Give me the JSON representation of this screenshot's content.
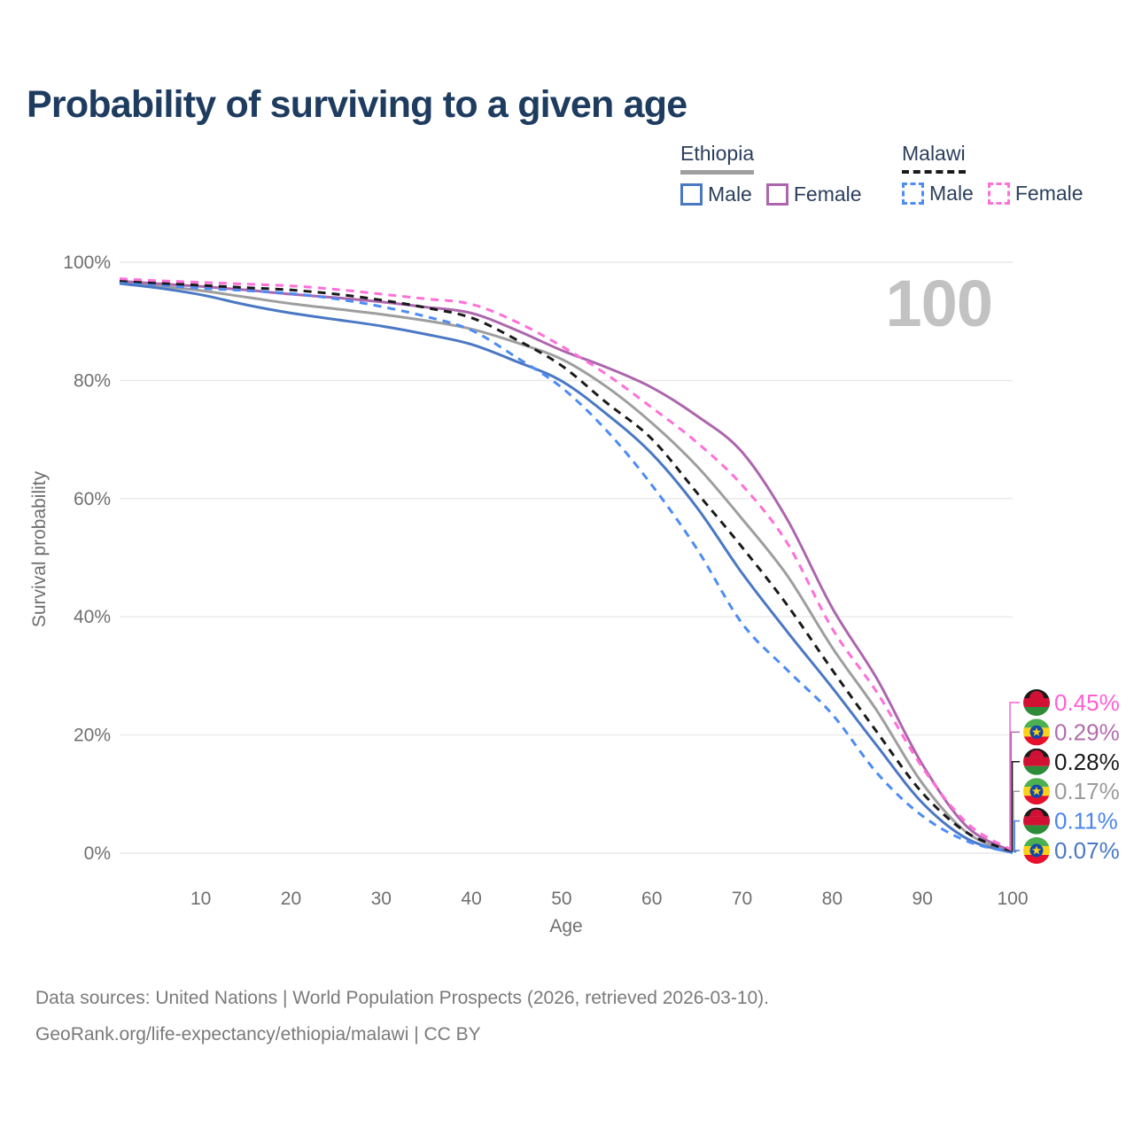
{
  "title": "Probability of surviving to a given age",
  "watermark_age": "100",
  "legend": {
    "groups": [
      {
        "name": "Ethiopia",
        "line_style": "solid",
        "underline_color": "#9e9e9e",
        "items": [
          {
            "label": "Male",
            "color": "#4a78c4"
          },
          {
            "label": "Female",
            "color": "#ad66ad"
          }
        ]
      },
      {
        "name": "Malawi",
        "line_style": "dashed",
        "underline_color": "#1a1a1a",
        "items": [
          {
            "label": "Male",
            "color": "#4d8bf5"
          },
          {
            "label": "Female",
            "color": "#ff6fd8"
          }
        ]
      }
    ]
  },
  "chart_data": {
    "type": "line",
    "title": "Probability of surviving to a given age",
    "xlabel": "Age",
    "ylabel": "Survival probability",
    "xlim": [
      1,
      100
    ],
    "ylim": [
      0,
      100
    ],
    "grid": "horizontal",
    "x_ticks": [
      10,
      20,
      30,
      40,
      50,
      60,
      70,
      80,
      90,
      100
    ],
    "y_ticks": [
      {
        "value": 0,
        "label": "0%"
      },
      {
        "value": 20,
        "label": "20%"
      },
      {
        "value": 40,
        "label": "40%"
      },
      {
        "value": 60,
        "label": "60%"
      },
      {
        "value": 80,
        "label": "80%"
      },
      {
        "value": 100,
        "label": "100%"
      }
    ],
    "x": [
      1,
      5,
      10,
      15,
      20,
      25,
      30,
      35,
      40,
      45,
      50,
      55,
      60,
      65,
      70,
      75,
      80,
      85,
      90,
      95,
      100
    ],
    "series": [
      {
        "name": "Ethiopia (both sexes)",
        "country": "Ethiopia",
        "sex": "both",
        "color": "#9e9e9e",
        "dash": "solid",
        "values": [
          96.6,
          96.0,
          95.2,
          94.1,
          93.0,
          92.1,
          91.2,
          90.1,
          88.7,
          86.4,
          83.6,
          78.9,
          72.8,
          65.5,
          56.6,
          47.0,
          34.8,
          24.0,
          11.8,
          3.4,
          0.17
        ]
      },
      {
        "name": "Ethiopia Male",
        "country": "Ethiopia",
        "sex": "male",
        "color": "#4a78c4",
        "dash": "solid",
        "values": [
          96.4,
          95.7,
          94.5,
          92.8,
          91.4,
          90.3,
          89.2,
          87.8,
          86.1,
          83.2,
          79.9,
          74.3,
          67.6,
          58.5,
          47.4,
          37.5,
          28.0,
          18.1,
          8.5,
          2.4,
          0.07
        ]
      },
      {
        "name": "Ethiopia Female",
        "country": "Ethiopia",
        "sex": "female",
        "color": "#ad66ad",
        "dash": "solid",
        "values": [
          96.8,
          96.4,
          95.9,
          95.3,
          94.6,
          94.0,
          93.3,
          92.4,
          91.4,
          88.5,
          85.1,
          82.2,
          78.8,
          74.0,
          67.9,
          56.5,
          41.5,
          29.4,
          15.0,
          4.4,
          0.29
        ]
      },
      {
        "name": "Malawi Male",
        "country": "Malawi",
        "sex": "male",
        "color": "#4d8bf5",
        "dash": "dashed",
        "values": [
          96.7,
          96.2,
          95.6,
          95.2,
          94.7,
          93.8,
          92.5,
          90.8,
          88.5,
          83.9,
          78.8,
          71.5,
          62.3,
          51.5,
          38.9,
          31.0,
          23.5,
          13.5,
          6.3,
          2.0,
          0.11
        ]
      },
      {
        "name": "Malawi (both sexes)",
        "country": "Malawi",
        "sex": "both",
        "color": "#1a1a1a",
        "dash": "dashed",
        "values": [
          96.9,
          96.5,
          96.1,
          95.7,
          95.3,
          94.6,
          93.6,
          92.3,
          90.6,
          86.9,
          82.5,
          76.2,
          70.1,
          61.0,
          51.8,
          42.0,
          31.0,
          20.4,
          10.2,
          3.4,
          0.28
        ]
      },
      {
        "name": "Malawi Female",
        "country": "Malawi",
        "sex": "female",
        "color": "#ff6fd8",
        "dash": "dashed",
        "values": [
          97.2,
          96.9,
          96.6,
          96.3,
          96.0,
          95.4,
          94.6,
          93.8,
          92.9,
          89.9,
          85.8,
          81.0,
          75.4,
          69.5,
          62.3,
          52.5,
          38.0,
          27.1,
          14.5,
          5.0,
          0.45
        ]
      }
    ]
  },
  "end_labels": [
    {
      "flag": "malawi",
      "series": "Malawi Female",
      "value": "0.45%",
      "color": "#ff5fd2"
    },
    {
      "flag": "ethiopia",
      "series": "Ethiopia Female",
      "value": "0.29%",
      "color": "#b16dad"
    },
    {
      "flag": "malawi",
      "series": "Malawi (both sexes)",
      "value": "0.28%",
      "color": "#1a1a1a"
    },
    {
      "flag": "ethiopia",
      "series": "Ethiopia (both sexes)",
      "value": "0.17%",
      "color": "#9b9b9b"
    },
    {
      "flag": "malawi",
      "series": "Malawi Male",
      "value": "0.11%",
      "color": "#4b85ec"
    },
    {
      "flag": "ethiopia",
      "series": "Ethiopia Male",
      "value": "0.07%",
      "color": "#4a78c4"
    }
  ],
  "footer": {
    "line1": "Data sources: United Nations | World Population Prospects (2026, retrieved 2026-03-10).",
    "line2": "GeoRank.org/life-expectancy/ethiopia/malawi | CC BY"
  }
}
